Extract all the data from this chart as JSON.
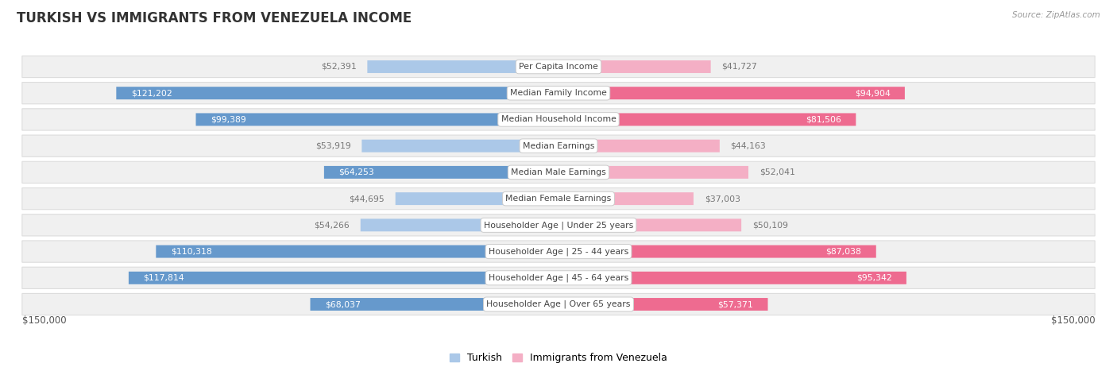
{
  "title": "TURKISH VS IMMIGRANTS FROM VENEZUELA INCOME",
  "source": "Source: ZipAtlas.com",
  "categories": [
    "Per Capita Income",
    "Median Family Income",
    "Median Household Income",
    "Median Earnings",
    "Median Male Earnings",
    "Median Female Earnings",
    "Householder Age | Under 25 years",
    "Householder Age | 25 - 44 years",
    "Householder Age | 45 - 64 years",
    "Householder Age | Over 65 years"
  ],
  "turkish_values": [
    52391,
    121202,
    99389,
    53919,
    64253,
    44695,
    54266,
    110318,
    117814,
    68037
  ],
  "venezuela_values": [
    41727,
    94904,
    81506,
    44163,
    52041,
    37003,
    50109,
    87038,
    95342,
    57371
  ],
  "turkish_color_light": "#abc8e8",
  "turkish_color_dark": "#6699cc",
  "venezuela_color_light": "#f4afc5",
  "venezuela_color_dark": "#ee6b90",
  "label_color_outside": "#777777",
  "label_color_inside": "#ffffff",
  "background_color": "#ffffff",
  "row_bg_color": "#f0f0f0",
  "row_border_color": "#dddddd",
  "center_label_bg": "#ffffff",
  "center_label_border": "#cccccc",
  "center_label_text": "#444444",
  "max_value": 150000,
  "axis_label_left": "$150,000",
  "axis_label_right": "$150,000",
  "legend_turkish": "Turkish",
  "legend_venezuela": "Immigrants from Venezuela",
  "inside_label_threshold": 55000
}
